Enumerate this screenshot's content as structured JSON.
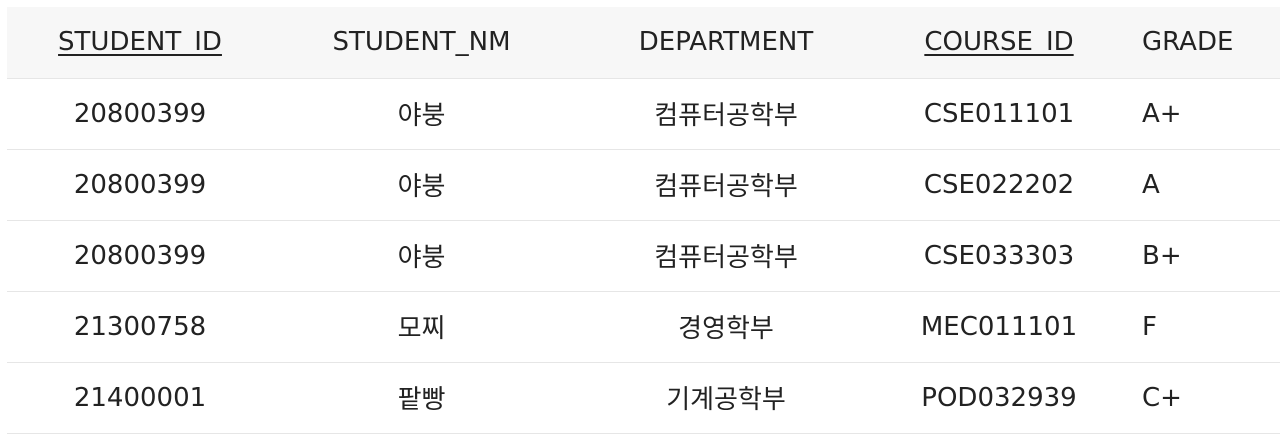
{
  "table": {
    "columns": [
      {
        "label": "STUDENT_ID",
        "key": true
      },
      {
        "label": "STUDENT_NM",
        "key": false
      },
      {
        "label": "DEPARTMENT",
        "key": false
      },
      {
        "label": "COURSE_ID",
        "key": true
      },
      {
        "label": "GRADE",
        "key": false
      }
    ],
    "rows": [
      [
        "20800399",
        "야붕",
        "컴퓨터공학부",
        "CSE011101",
        "A+"
      ],
      [
        "20800399",
        "야붕",
        "컴퓨터공학부",
        "CSE022202",
        "A"
      ],
      [
        "20800399",
        "야붕",
        "컴퓨터공학부",
        "CSE033303",
        "B+"
      ],
      [
        "21300758",
        "모찌",
        "경영학부",
        "MEC011101",
        "F"
      ],
      [
        "21400001",
        "팥빵",
        "기계공학부",
        "POD032939",
        "C+"
      ]
    ]
  }
}
